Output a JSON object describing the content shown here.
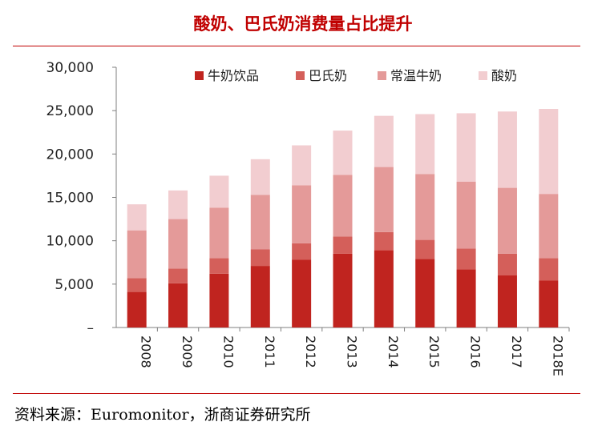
{
  "title": "酸奶、巴氏奶消费量占比提升",
  "source": "资料来源：Euromonitor，浙商证券研究所",
  "colors": {
    "title": "#c00000",
    "series": [
      "#c0241f",
      "#d45f5a",
      "#e49a99",
      "#f2cdd0"
    ]
  },
  "chart_data": {
    "type": "bar",
    "stacked": true,
    "categories": [
      "2008",
      "2009",
      "2010",
      "2011",
      "2012",
      "2013",
      "2014",
      "2015",
      "2016",
      "2017",
      "2018E"
    ],
    "series": [
      {
        "name": "牛奶饮品",
        "values": [
          4100,
          5100,
          6200,
          7100,
          7800,
          8500,
          8900,
          7900,
          6700,
          6000,
          5400
        ]
      },
      {
        "name": "巴氏奶",
        "values": [
          1600,
          1700,
          1800,
          1900,
          1900,
          2000,
          2100,
          2200,
          2400,
          2500,
          2600
        ]
      },
      {
        "name": "常温牛奶",
        "values": [
          5500,
          5700,
          5800,
          6300,
          6700,
          7100,
          7500,
          7600,
          7700,
          7600,
          7400
        ]
      },
      {
        "name": "酸奶",
        "values": [
          3000,
          3300,
          3700,
          4100,
          4600,
          5100,
          5900,
          6900,
          7900,
          8800,
          9800
        ]
      }
    ],
    "ylim": [
      0,
      30000
    ],
    "yticks": [
      "–",
      "5,000",
      "10,000",
      "15,000",
      "20,000",
      "25,000",
      "30,000"
    ],
    "xlabel_rotation": 90,
    "legend": "top",
    "grid": false
  }
}
